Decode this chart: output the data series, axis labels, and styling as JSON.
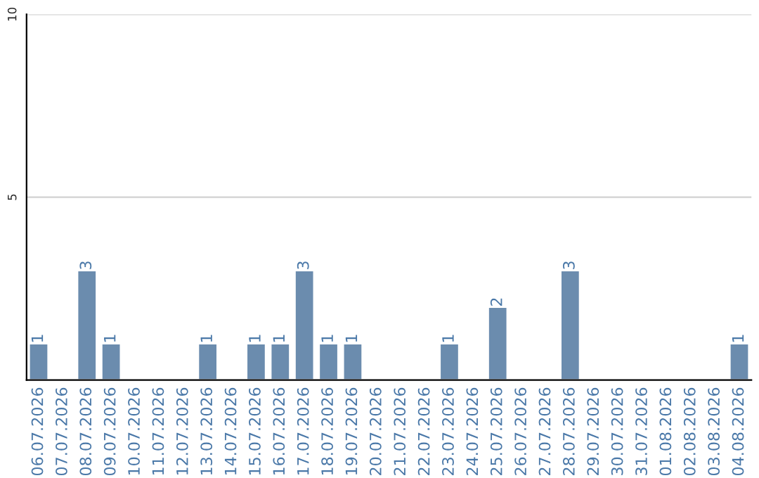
{
  "chart_data": {
    "type": "bar",
    "categories": [
      "06.07.2026",
      "07.07.2026",
      "08.07.2026",
      "09.07.2026",
      "10.07.2026",
      "11.07.2026",
      "12.07.2026",
      "13.07.2026",
      "14.07.2026",
      "15.07.2026",
      "16.07.2026",
      "17.07.2026",
      "18.07.2026",
      "19.07.2026",
      "20.07.2026",
      "21.07.2026",
      "22.07.2026",
      "23.07.2026",
      "24.07.2026",
      "25.07.2026",
      "26.07.2026",
      "27.07.2026",
      "28.07.2026",
      "29.07.2026",
      "30.07.2026",
      "31.07.2026",
      "01.08.2026",
      "02.08.2026",
      "03.08.2026",
      "04.08.2026"
    ],
    "values": [
      1,
      null,
      3,
      1,
      null,
      null,
      null,
      1,
      null,
      1,
      1,
      3,
      1,
      1,
      null,
      null,
      null,
      1,
      null,
      2,
      null,
      null,
      3,
      null,
      null,
      null,
      null,
      null,
      null,
      1
    ],
    "value_labels": [
      "1",
      null,
      "3",
      "1",
      null,
      null,
      null,
      "1",
      null,
      "1",
      "1",
      "3",
      "1",
      "1",
      null,
      null,
      null,
      "1",
      null,
      "2",
      null,
      null,
      "3",
      null,
      null,
      null,
      null,
      null,
      null,
      "1"
    ],
    "color": "#6b8cae",
    "ylim": [
      0,
      10
    ],
    "yticks": [
      5,
      10
    ],
    "grid": "y",
    "legend": false
  }
}
